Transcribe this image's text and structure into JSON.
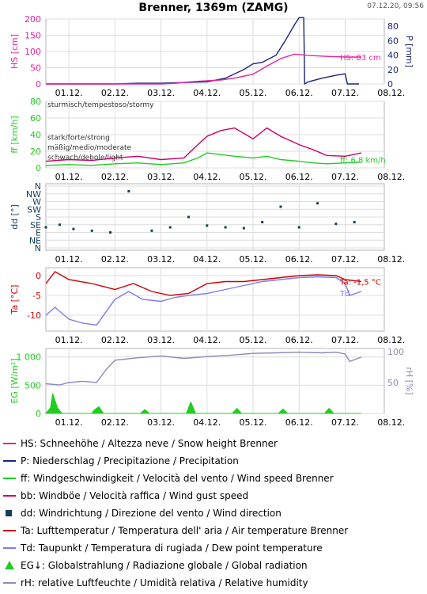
{
  "header": {
    "title": "Brenner, 1369m (ZAMG)",
    "timestamp": "07.12.20, 09:56"
  },
  "colors": {
    "snow": "#e8239b",
    "precip": "#1a237e",
    "wind": "#22cc22",
    "gust": "#cc0066",
    "dir": "#153f59",
    "temp": "#cc0000",
    "dew": "#7b7bee",
    "rad": "#22cc22",
    "rh": "#8a8ab8"
  },
  "chart_data": [
    {
      "id": "snow",
      "type": "line",
      "x_ticks": [
        "01.12.",
        "02.12.",
        "03.12.",
        "04.12.",
        "05.12.",
        "06.12.",
        "07.12.",
        "08.12."
      ],
      "left_axis": {
        "label": "HS [cm]",
        "ticks": [
          "0",
          "50",
          "100",
          "150",
          "200"
        ],
        "ylim": [
          0,
          200
        ]
      },
      "right_axis": {
        "label": "P [mm]",
        "ticks": [
          "0",
          "20",
          "40",
          "60",
          "80"
        ],
        "ylim": [
          0,
          90
        ]
      },
      "annotation": "HS: 83 cm",
      "series": [
        {
          "name": "HS",
          "axis": "left",
          "x": [
            0.5,
            1,
            2,
            3,
            3.3,
            3.6,
            4,
            4.3,
            4.6,
            5,
            5.3,
            5.6,
            5.9,
            6.2,
            6.6,
            7,
            7.35
          ],
          "values": [
            0,
            0,
            0,
            0,
            2,
            6,
            10,
            12,
            18,
            30,
            55,
            78,
            92,
            88,
            85,
            83,
            83
          ]
        },
        {
          "name": "P",
          "axis": "right",
          "x": [
            0.5,
            1,
            2,
            2.5,
            3,
            3.5,
            4,
            4.4,
            4.8,
            5,
            5.2,
            5.5,
            5.7,
            5.9,
            6,
            6.1,
            6.12,
            6.2,
            6.5,
            6.8,
            7,
            7.05,
            7.3
          ],
          "values": [
            0,
            0,
            0,
            1,
            1,
            2,
            3,
            8,
            20,
            28,
            30,
            40,
            60,
            82,
            92,
            92,
            0,
            3,
            8,
            12,
            14,
            0,
            0
          ]
        }
      ]
    },
    {
      "id": "wind",
      "type": "line",
      "x_ticks": [
        "01.12.",
        "02.12.",
        "03.12.",
        "04.12.",
        "05.12.",
        "06.12.",
        "07.12.",
        "08.12."
      ],
      "left_axis": {
        "label": "ff [km/h]",
        "ticks": [
          "0",
          "20",
          "40",
          "60",
          "80"
        ],
        "ylim": [
          0,
          80
        ]
      },
      "bands": [
        "sturmisch/tempestoso/stormy",
        "stark/forte/strong",
        "mäßig/medio/moderate",
        "schwach/debole/light"
      ],
      "annotation": "ff: 6,8 km/h",
      "series": [
        {
          "name": "ff",
          "x": [
            0.5,
            1,
            1.5,
            2,
            2.5,
            3,
            3.5,
            3.8,
            4,
            4.3,
            4.6,
            5,
            5.3,
            5.6,
            6,
            6.3,
            6.6,
            7,
            7.35
          ],
          "values": [
            3,
            4,
            3,
            5,
            6,
            4,
            6,
            12,
            18,
            16,
            14,
            12,
            14,
            10,
            8,
            6,
            5,
            6,
            7
          ]
        },
        {
          "name": "bb",
          "x": [
            0.5,
            1,
            1.5,
            2,
            2.5,
            3,
            3.5,
            3.8,
            4,
            4.3,
            4.6,
            5,
            5.3,
            5.6,
            6,
            6.3,
            6.6,
            7,
            7.35
          ],
          "values": [
            8,
            10,
            9,
            12,
            14,
            10,
            12,
            28,
            38,
            45,
            48,
            35,
            48,
            38,
            28,
            22,
            15,
            14,
            18
          ]
        }
      ]
    },
    {
      "id": "direction",
      "type": "scatter",
      "x_ticks": [
        "01.12.",
        "02.12.",
        "03.12.",
        "04.12.",
        "05.12.",
        "06.12.",
        "07.12.",
        "08.12."
      ],
      "left_axis": {
        "label": "dd [°]",
        "ticks": [
          "N",
          "NW",
          "W",
          "SW",
          "S",
          "SE",
          "E",
          "NE",
          "N"
        ],
        "ylim": [
          0,
          360
        ]
      },
      "series": [
        {
          "name": "dd",
          "x": [
            0.5,
            0.8,
            1.1,
            1.5,
            1.9,
            2.3,
            2.8,
            3.2,
            3.6,
            4.0,
            4.4,
            4.8,
            5.2,
            5.6,
            6.0,
            6.4,
            6.8,
            7.2
          ],
          "values": [
            120,
            135,
            110,
            100,
            90,
            330,
            100,
            120,
            180,
            130,
            120,
            115,
            150,
            240,
            120,
            260,
            140,
            150
          ]
        }
      ]
    },
    {
      "id": "temperature",
      "type": "line",
      "x_ticks": [
        "01.12.",
        "02.12.",
        "03.12.",
        "04.12.",
        "05.12.",
        "06.12.",
        "07.12.",
        "08.12."
      ],
      "left_axis": {
        "label": "Ta [°C]",
        "ticks": [
          "0",
          "-5",
          "-10"
        ],
        "ylim": [
          -14,
          2
        ]
      },
      "annotations": [
        "Ta: -1,5 °C",
        "Td"
      ],
      "series": [
        {
          "name": "Ta",
          "x": [
            0.5,
            0.7,
            1,
            1.5,
            2,
            2.4,
            2.8,
            3.2,
            3.6,
            4,
            4.4,
            4.8,
            5.2,
            5.6,
            6,
            6.4,
            6.8,
            7,
            7.35
          ],
          "values": [
            -2,
            1,
            -1,
            -2,
            -3.5,
            -2,
            -4,
            -5,
            -4.5,
            -2,
            -1.5,
            -1.5,
            -1,
            -0.5,
            0,
            0.2,
            0,
            -1,
            -1.5
          ]
        },
        {
          "name": "Td",
          "x": [
            0.5,
            0.7,
            1,
            1.3,
            1.6,
            2,
            2.3,
            2.6,
            3,
            3.3,
            3.6,
            4,
            4.4,
            4.8,
            5.2,
            5.6,
            6,
            6.4,
            6.8,
            7,
            7.1,
            7.35
          ],
          "values": [
            -10,
            -8,
            -11,
            -12,
            -12.5,
            -6,
            -4,
            -6,
            -6.5,
            -5.5,
            -5,
            -4.5,
            -3.5,
            -2.5,
            -1.5,
            -1,
            -0.5,
            -0.3,
            -0.5,
            -2,
            -5,
            -4
          ]
        }
      ]
    },
    {
      "id": "radiation",
      "type": "area",
      "x_ticks": [
        "01.12.",
        "02.12.",
        "03.12.",
        "04.12.",
        "05.12.",
        "06.12.",
        "07.12.",
        "08.12."
      ],
      "left_axis": {
        "label": "EG [W/m²]",
        "ticks": [
          "0",
          "500",
          "1 000"
        ],
        "ylim": [
          0,
          1150
        ]
      },
      "right_axis": {
        "label": "rH [%]",
        "ticks": [
          "50",
          "100"
        ],
        "ylim": [
          0,
          105
        ]
      },
      "series": [
        {
          "name": "EG",
          "x": [
            0.5,
            0.6,
            0.65,
            0.75,
            0.85,
            1.5,
            1.55,
            1.65,
            1.75,
            2.55,
            2.65,
            2.75,
            3.55,
            3.65,
            3.75,
            4.55,
            4.65,
            4.75,
            5.55,
            5.65,
            5.75,
            6.55,
            6.65,
            6.75,
            7.35
          ],
          "values": [
            0,
            100,
            350,
            100,
            0,
            0,
            60,
            120,
            0,
            0,
            70,
            0,
            0,
            200,
            0,
            0,
            90,
            0,
            0,
            80,
            0,
            0,
            90,
            0,
            0
          ]
        },
        {
          "name": "rH",
          "x": [
            0.5,
            0.8,
            1,
            1.3,
            1.6,
            1.8,
            2,
            2.5,
            3,
            3.5,
            4,
            4.5,
            5,
            5.5,
            6,
            6.5,
            6.8,
            7,
            7.1,
            7.35
          ],
          "values": [
            48,
            46,
            50,
            52,
            50,
            70,
            86,
            90,
            93,
            89,
            92,
            94,
            97,
            98,
            99,
            98,
            99,
            96,
            84,
            91
          ]
        }
      ]
    }
  ],
  "legend": [
    {
      "label": "HS: Schneehöhe / Altezza neve / Snow height  Brenner",
      "symbol": "line",
      "color": "#e8239b"
    },
    {
      "label": "P: Niederschlag / Precipitazione / Precipitation",
      "symbol": "line",
      "color": "#1a237e"
    },
    {
      "label": "ff: Windgeschwindigkeit / Velocità del vento / Wind speed  Brenner",
      "symbol": "line",
      "color": "#22cc22"
    },
    {
      "label": "bb: Windböe / Velocità raffica / Wind gust speed",
      "symbol": "line",
      "color": "#cc0066"
    },
    {
      "label": "dd: Windrichtung / Direzione del vento / Wind direction",
      "symbol": "square",
      "color": "#153f59"
    },
    {
      "label": "Ta: Lufttemperatur / Temperatura dell' aria / Air temperature  Brenner",
      "symbol": "line",
      "color": "#cc0000"
    },
    {
      "label": "Td: Taupunkt / Temperatura di rugiada / Dew point temperature",
      "symbol": "line",
      "color": "#7b7bee"
    },
    {
      "label": "EG↓: Globalstrahlung / Radiazione globale / Global radiation",
      "symbol": "triangle",
      "color": "#22cc22"
    },
    {
      "label": "rH: relative Luftfeuchte / Umidità relativa / Relative humidity",
      "symbol": "line",
      "color": "#8a8ab8"
    }
  ]
}
